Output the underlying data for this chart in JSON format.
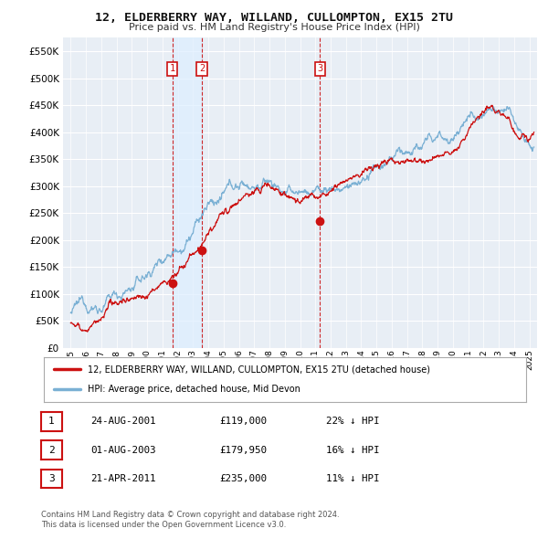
{
  "title": "12, ELDERBERRY WAY, WILLAND, CULLOMPTON, EX15 2TU",
  "subtitle": "Price paid vs. HM Land Registry's House Price Index (HPI)",
  "yticks": [
    0,
    50000,
    100000,
    150000,
    200000,
    250000,
    300000,
    350000,
    400000,
    450000,
    500000,
    550000
  ],
  "ylim": [
    0,
    575000
  ],
  "xlim_start": 1994.5,
  "xlim_end": 2025.5,
  "background_color": "#ffffff",
  "plot_bg_color": "#e8eef5",
  "grid_color": "#ffffff",
  "hpi_color": "#7ab0d4",
  "price_color": "#cc1111",
  "vline_color": "#cc1111",
  "shade_color": "#ddeeff",
  "sales": [
    {
      "num": 1,
      "date_x": 2001.65,
      "price": 119000,
      "label": "24-AUG-2001",
      "pct": "22%",
      "dir": "↓"
    },
    {
      "num": 2,
      "date_x": 2003.58,
      "price": 179950,
      "label": "01-AUG-2003",
      "pct": "16%",
      "dir": "↓"
    },
    {
      "num": 3,
      "date_x": 2011.31,
      "price": 235000,
      "label": "21-APR-2011",
      "pct": "11%",
      "dir": "↓"
    }
  ],
  "legend_line1": "12, ELDERBERRY WAY, WILLAND, CULLOMPTON, EX15 2TU (detached house)",
  "legend_line2": "HPI: Average price, detached house, Mid Devon",
  "footer1": "Contains HM Land Registry data © Crown copyright and database right 2024.",
  "footer2": "This data is licensed under the Open Government Licence v3.0."
}
